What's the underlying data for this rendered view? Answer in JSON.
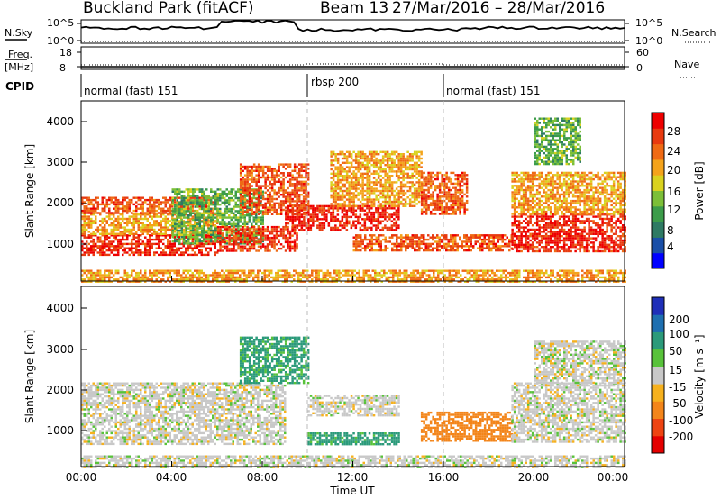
{
  "header": {
    "station": "Buckland Park (fitACF)",
    "beam": "Beam 13",
    "date_range": "27/Mar/2016 – 28/Mar/2016"
  },
  "noise_panel": {
    "left_label": "N.Sky",
    "right_label": "N.Search",
    "left_ticks": [
      "10^5",
      "10^0"
    ],
    "right_ticks": [
      "10^5",
      "10^0"
    ]
  },
  "freq_panel": {
    "left_label_1": "Freq.",
    "left_label_2": "[MHz]",
    "right_label": "Nave",
    "left_ticks": [
      "18",
      "8"
    ],
    "right_ticks": [
      "60",
      "0"
    ]
  },
  "cpid_panel": {
    "label": "CPID",
    "segments": [
      {
        "name": "normal (fast) 151",
        "start_hour": 0,
        "end_hour": 10
      },
      {
        "name": "rbsp 200",
        "start_hour": 10,
        "end_hour": 16
      },
      {
        "name": "normal (fast) 151",
        "start_hour": 16,
        "end_hour": 24
      }
    ]
  },
  "xaxis": {
    "label": "Time UT",
    "ticks": [
      "00:00",
      "04:00",
      "08:00",
      "12:00",
      "16:00",
      "20:00",
      "00:00"
    ]
  },
  "power_panel": {
    "ylabel": "Slant Range [km]",
    "yticks": [
      "1000",
      "2000",
      "3000",
      "4000"
    ],
    "colorbar_label": "Power [dB]",
    "colorbar_ticks": [
      "4",
      "8",
      "12",
      "16",
      "20",
      "24",
      "28"
    ],
    "colors": [
      "#0000ff",
      "#1a4fa8",
      "#2e7a63",
      "#3c9c4a",
      "#7cbf38",
      "#d9d21f",
      "#f4a31b",
      "#ef6a14",
      "#e83a10",
      "#ee0000"
    ]
  },
  "velocity_panel": {
    "ylabel": "Slant Range [km]",
    "yticks": [
      "1000",
      "2000",
      "3000",
      "4000"
    ],
    "colorbar_label": "Velocity [m s⁻¹]",
    "colorbar_ticks": [
      "200",
      "100",
      "50",
      "15",
      "-15",
      "-50",
      "-100",
      "-200"
    ],
    "colors": [
      "#1f2fb8",
      "#1e6fb0",
      "#2b9a7a",
      "#58c23a",
      "#c8c8c8",
      "#f6b11e",
      "#f3851a",
      "#ee4412",
      "#e40000"
    ]
  },
  "chart_data": {
    "type": "heatmap",
    "x_range_hours": [
      0,
      24
    ],
    "y_range_km": [
      180,
      4500
    ],
    "power_bands": [
      {
        "t0": 0,
        "t1": 6,
        "r0": 800,
        "r1": 1300,
        "value_db": 27
      },
      {
        "t0": 0,
        "t1": 6,
        "r0": 1300,
        "r1": 1800,
        "value_db": 20
      },
      {
        "t0": 0,
        "t1": 6,
        "r0": 1800,
        "r1": 2200,
        "value_db": 24
      },
      {
        "t0": 4,
        "t1": 8,
        "r0": 1100,
        "r1": 2400,
        "value_db": 12
      },
      {
        "t0": 6,
        "t1": 9.5,
        "r0": 900,
        "r1": 1500,
        "value_db": 26
      },
      {
        "t0": 7,
        "t1": 10,
        "r0": 1800,
        "r1": 3000,
        "value_db": 24
      },
      {
        "t0": 9,
        "t1": 14,
        "r0": 1400,
        "r1": 2000,
        "value_db": 27
      },
      {
        "t0": 11,
        "t1": 15,
        "r0": 2000,
        "r1": 3300,
        "value_db": 20
      },
      {
        "t0": 12,
        "t1": 19,
        "r0": 900,
        "r1": 1300,
        "value_db": 24
      },
      {
        "t0": 15,
        "t1": 17,
        "r0": 1800,
        "r1": 2800,
        "value_db": 24
      },
      {
        "t0": 19,
        "t1": 24,
        "r0": 900,
        "r1": 1800,
        "value_db": 27
      },
      {
        "t0": 19,
        "t1": 24,
        "r0": 1800,
        "r1": 2800,
        "value_db": 20
      },
      {
        "t0": 20,
        "t1": 22,
        "r0": 3000,
        "r1": 4100,
        "value_db": 12
      },
      {
        "t0": 0,
        "t1": 24,
        "r0": 180,
        "r1": 450,
        "value_db": 20
      }
    ],
    "velocity_bands": [
      {
        "t0": 0,
        "t1": 9,
        "r0": 700,
        "r1": 2200,
        "value": 0
      },
      {
        "t0": 7,
        "t1": 10,
        "r0": 2200,
        "r1": 3300,
        "value": 60
      },
      {
        "t0": 10,
        "t1": 14,
        "r0": 1400,
        "r1": 1900,
        "value": 0
      },
      {
        "t0": 10,
        "t1": 14,
        "r0": 700,
        "r1": 1000,
        "value": 60
      },
      {
        "t0": 15,
        "t1": 19,
        "r0": 800,
        "r1": 1500,
        "value": -80
      },
      {
        "t0": 19,
        "t1": 24,
        "r0": 800,
        "r1": 2200,
        "value": 0
      },
      {
        "t0": 20,
        "t1": 24,
        "r0": 2200,
        "r1": 3200,
        "value": 0
      },
      {
        "t0": 0,
        "t1": 24,
        "r0": 180,
        "r1": 450,
        "value": 0
      }
    ]
  }
}
